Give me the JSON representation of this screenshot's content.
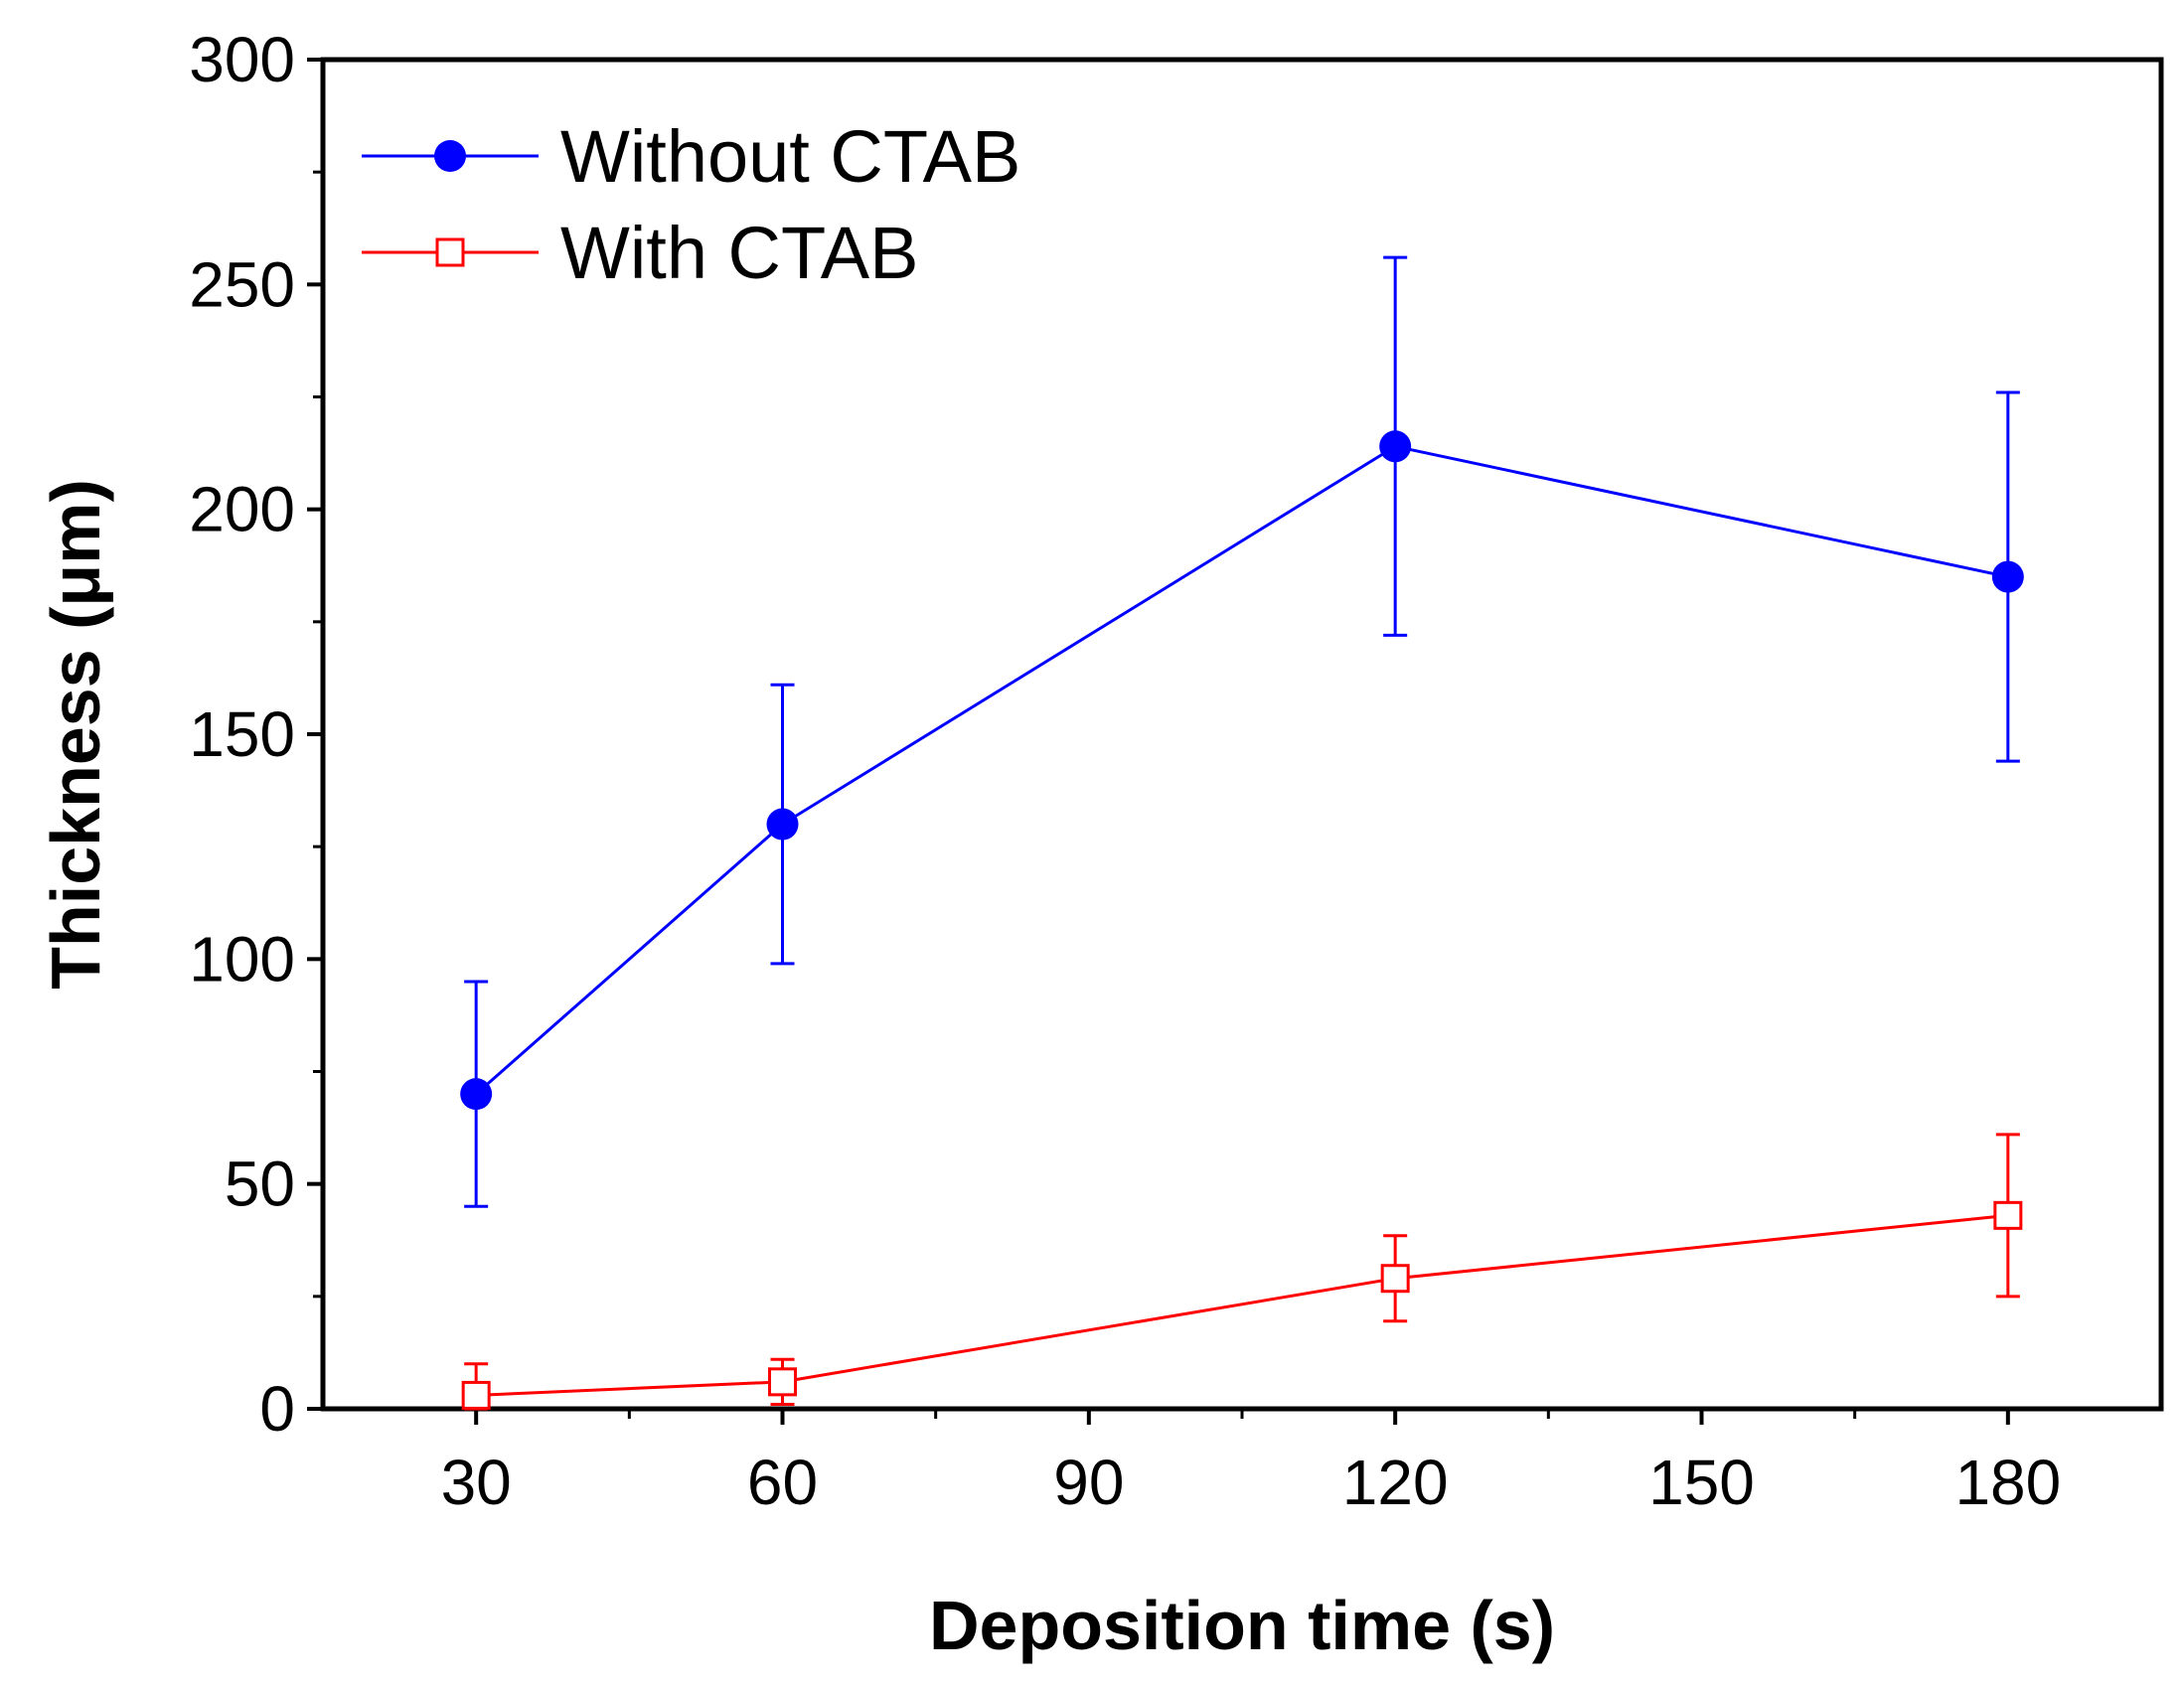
{
  "chart_data": {
    "type": "line",
    "title": "",
    "xlabel": "Deposition time (s)",
    "ylabel": "Thickness (μm)",
    "xlim": [
      15,
      195
    ],
    "ylim": [
      0,
      300
    ],
    "x_ticks": [
      30,
      60,
      90,
      120,
      150,
      180
    ],
    "y_ticks": [
      0,
      50,
      100,
      150,
      200,
      250,
      300
    ],
    "x_tick_labels": [
      "30",
      "60",
      "90",
      "120",
      "150",
      "180"
    ],
    "y_tick_labels": [
      "0",
      "50",
      "100",
      "150",
      "200",
      "250",
      "300"
    ],
    "grid": false,
    "legend_position": "top-left",
    "series": [
      {
        "name": "Without CTAB",
        "color": "#0000ff",
        "marker": "filled-circle",
        "x": [
          30,
          60,
          120,
          180
        ],
        "y": [
          70,
          130,
          214,
          185
        ],
        "error": [
          25,
          31,
          42,
          41
        ]
      },
      {
        "name": "With CTAB",
        "color": "#ff0000",
        "marker": "open-square",
        "x": [
          30,
          60,
          120,
          180
        ],
        "y": [
          3,
          6,
          29,
          43
        ],
        "error": [
          7,
          5,
          9.5,
          18
        ]
      }
    ]
  }
}
